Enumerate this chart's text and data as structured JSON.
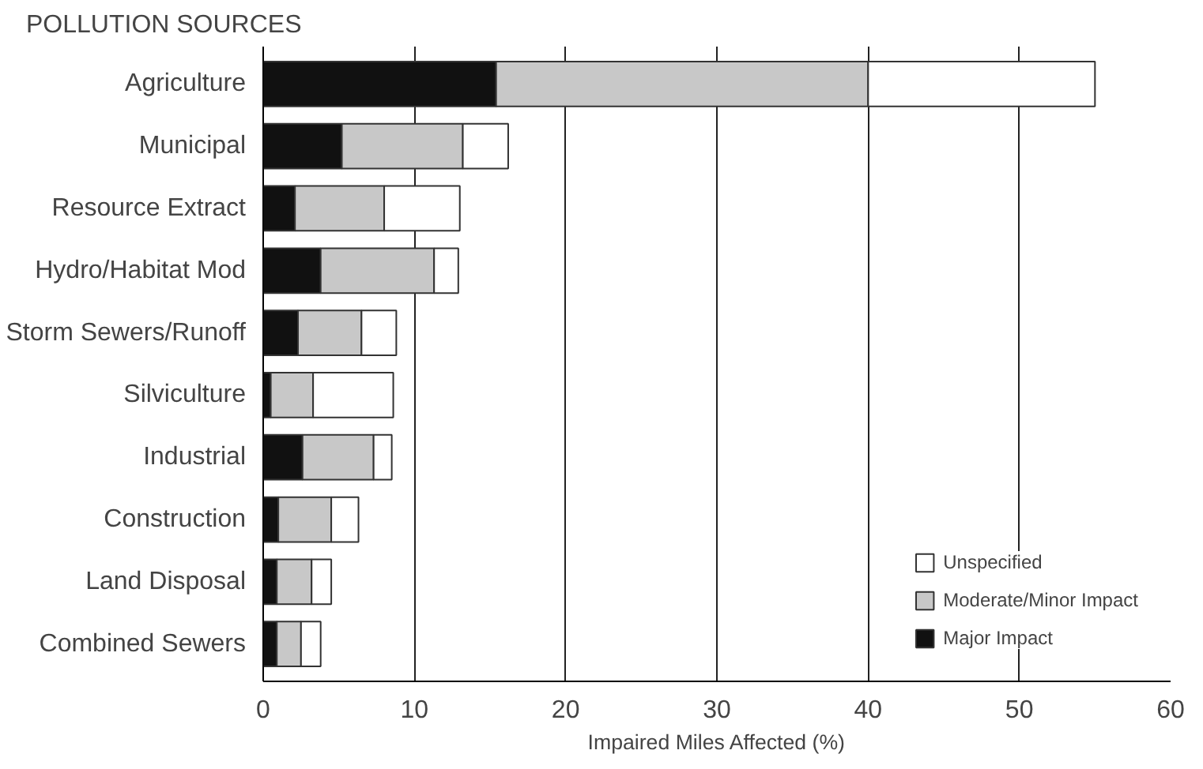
{
  "chart_data": {
    "type": "bar",
    "orientation": "horizontal",
    "stacked": true,
    "title": "POLLUTION SOURCES",
    "xlabel": "Impaired Miles Affected (%)",
    "categories": [
      "Agriculture",
      "Municipal",
      "Resource Extract",
      "Hydro/Habitat Mod",
      "Storm Sewers/Runoff",
      "Silviculture",
      "Industrial",
      "Construction",
      "Land Disposal",
      "Combined Sewers"
    ],
    "series": [
      {
        "name": "Major Impact",
        "color": "#111111",
        "values": [
          15.4,
          5.2,
          2.1,
          3.8,
          2.3,
          0.5,
          2.6,
          1.0,
          0.9,
          0.9
        ]
      },
      {
        "name": "Moderate/Minor Impact",
        "color": "#c8c8c8",
        "values": [
          24.6,
          8.0,
          5.9,
          7.5,
          4.2,
          2.8,
          4.7,
          3.5,
          2.3,
          1.6
        ]
      },
      {
        "name": "Unspecified",
        "color": "#ffffff",
        "values": [
          15.0,
          3.0,
          5.0,
          1.6,
          2.3,
          5.3,
          1.2,
          1.8,
          1.3,
          1.3
        ]
      }
    ],
    "xlim": [
      0,
      60
    ],
    "xticks": [
      0,
      10,
      20,
      30,
      40,
      50,
      60
    ],
    "grid": "x",
    "legend": "bottom right"
  }
}
